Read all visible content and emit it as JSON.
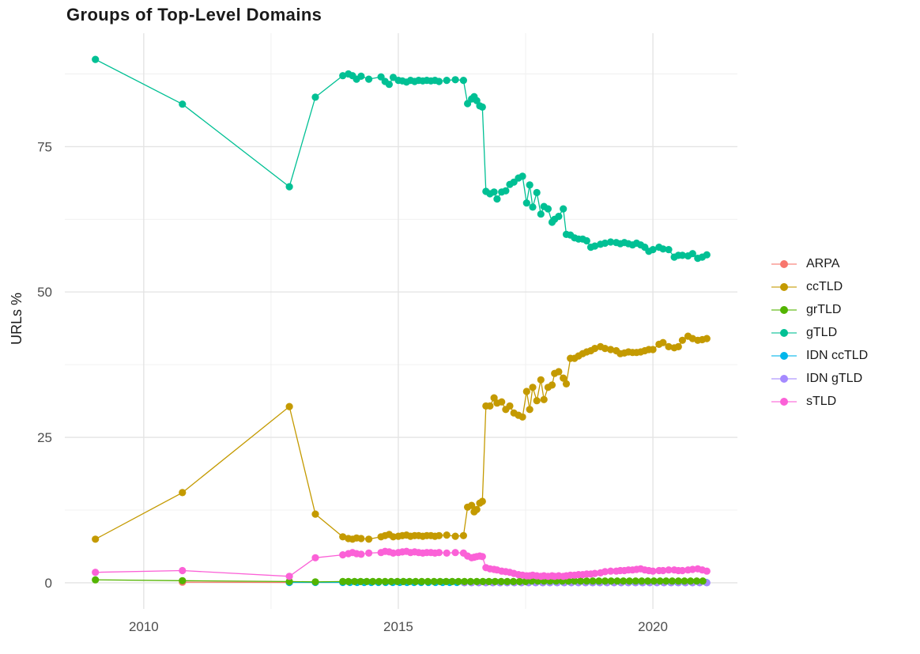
{
  "chart_data": {
    "type": "line",
    "title": "Groups of Top-Level Domains",
    "xlabel": "",
    "ylabel": "URLs %",
    "grid": "on",
    "legend_position": "right",
    "x_domain": [
      2008.45,
      2021.66
    ],
    "y_domain": [
      -4.5,
      94.5
    ],
    "x_ticks": [
      {
        "value": 2010,
        "label": "2010"
      },
      {
        "value": 2015,
        "label": "2015"
      },
      {
        "value": 2020,
        "label": "2020"
      }
    ],
    "x_minor_ticks": [
      2012.5,
      2017.5
    ],
    "y_ticks": [
      {
        "value": 0,
        "label": "0"
      },
      {
        "value": 25,
        "label": "25"
      },
      {
        "value": 50,
        "label": "50"
      },
      {
        "value": 75,
        "label": "75"
      }
    ],
    "y_minor_ticks": [
      12.5,
      37.5,
      62.5,
      87.5
    ],
    "z_order": [
      "ARPA",
      "IDN ccTLD",
      "IDN gTLD",
      "grTLD",
      "ccTLD",
      "gTLD",
      "sTLD"
    ],
    "series": [
      {
        "name": "ARPA",
        "color": "#F8766D",
        "points": [
          [
            2010.76,
            0.1
          ],
          [
            2012.86,
            0.05
          ]
        ]
      },
      {
        "name": "ccTLD",
        "color": "#C49A00",
        "points": [
          [
            2009.05,
            7.5
          ],
          [
            2010.76,
            15.5
          ],
          [
            2012.86,
            30.3
          ],
          [
            2013.37,
            11.8
          ],
          [
            2013.91,
            7.9
          ],
          [
            2014.02,
            7.6
          ],
          [
            2014.1,
            7.5
          ],
          [
            2014.18,
            7.7
          ],
          [
            2014.27,
            7.6
          ],
          [
            2014.42,
            7.5
          ],
          [
            2014.66,
            7.9
          ],
          [
            2014.74,
            8.1
          ],
          [
            2014.82,
            8.3
          ],
          [
            2014.9,
            7.9
          ],
          [
            2015.0,
            8.0
          ],
          [
            2015.08,
            8.1
          ],
          [
            2015.16,
            8.2
          ],
          [
            2015.24,
            8.0
          ],
          [
            2015.32,
            8.1
          ],
          [
            2015.4,
            8.1
          ],
          [
            2015.48,
            8.0
          ],
          [
            2015.56,
            8.1
          ],
          [
            2015.64,
            8.1
          ],
          [
            2015.72,
            8.0
          ],
          [
            2015.8,
            8.1
          ],
          [
            2015.95,
            8.2
          ],
          [
            2016.12,
            8.0
          ],
          [
            2016.28,
            8.1
          ],
          [
            2016.36,
            13.0
          ],
          [
            2016.44,
            13.3
          ],
          [
            2016.49,
            12.2
          ],
          [
            2016.54,
            12.6
          ],
          [
            2016.6,
            13.7
          ],
          [
            2016.65,
            14.0
          ],
          [
            2016.72,
            30.4
          ],
          [
            2016.8,
            30.4
          ],
          [
            2016.88,
            31.8
          ],
          [
            2016.94,
            30.9
          ],
          [
            2017.03,
            31.1
          ],
          [
            2017.11,
            29.8
          ],
          [
            2017.19,
            30.4
          ],
          [
            2017.27,
            29.2
          ],
          [
            2017.36,
            28.8
          ],
          [
            2017.44,
            28.5
          ],
          [
            2017.52,
            32.9
          ],
          [
            2017.58,
            29.8
          ],
          [
            2017.64,
            33.6
          ],
          [
            2017.72,
            31.3
          ],
          [
            2017.8,
            34.9
          ],
          [
            2017.86,
            31.5
          ],
          [
            2017.94,
            33.6
          ],
          [
            2018.02,
            34.0
          ],
          [
            2018.07,
            36.0
          ],
          [
            2018.15,
            36.3
          ],
          [
            2018.24,
            35.2
          ],
          [
            2018.3,
            34.2
          ],
          [
            2018.38,
            38.6
          ],
          [
            2018.46,
            38.6
          ],
          [
            2018.54,
            39.0
          ],
          [
            2018.62,
            39.4
          ],
          [
            2018.7,
            39.7
          ],
          [
            2018.78,
            39.9
          ],
          [
            2018.86,
            40.3
          ],
          [
            2018.97,
            40.6
          ],
          [
            2019.06,
            40.3
          ],
          [
            2019.17,
            40.1
          ],
          [
            2019.28,
            39.9
          ],
          [
            2019.36,
            39.4
          ],
          [
            2019.44,
            39.5
          ],
          [
            2019.52,
            39.7
          ],
          [
            2019.6,
            39.6
          ],
          [
            2019.68,
            39.6
          ],
          [
            2019.76,
            39.7
          ],
          [
            2019.84,
            39.9
          ],
          [
            2019.92,
            40.1
          ],
          [
            2020.0,
            40.1
          ],
          [
            2020.12,
            41.0
          ],
          [
            2020.2,
            41.3
          ],
          [
            2020.31,
            40.6
          ],
          [
            2020.42,
            40.4
          ],
          [
            2020.5,
            40.6
          ],
          [
            2020.58,
            41.7
          ],
          [
            2020.69,
            42.4
          ],
          [
            2020.78,
            42.0
          ],
          [
            2020.88,
            41.7
          ],
          [
            2020.97,
            41.8
          ],
          [
            2021.06,
            42.0
          ]
        ]
      },
      {
        "name": "grTLD",
        "color": "#53B400",
        "points": [
          [
            2009.05,
            0.5
          ],
          [
            2010.76,
            0.35
          ],
          [
            2012.86,
            0.2
          ],
          [
            2013.37,
            0.15
          ],
          [
            2013.91,
            0.2
          ],
          {
            "run": [
              2014.02,
              2017.5,
              0.12,
              0.2
            ]
          },
          {
            "run": [
              2017.62,
              2021.06,
              0.12,
              0.3
            ]
          }
        ]
      },
      {
        "name": "gTLD",
        "color": "#00C094",
        "points": [
          [
            2009.05,
            90.0
          ],
          [
            2010.76,
            82.3
          ],
          [
            2012.86,
            68.1
          ],
          [
            2013.37,
            83.5
          ],
          [
            2013.91,
            87.2
          ],
          [
            2014.02,
            87.5
          ],
          [
            2014.1,
            87.2
          ],
          [
            2014.18,
            86.6
          ],
          [
            2014.27,
            87.1
          ],
          [
            2014.42,
            86.6
          ],
          [
            2014.66,
            87.0
          ],
          [
            2014.74,
            86.2
          ],
          [
            2014.82,
            85.7
          ],
          [
            2014.9,
            86.9
          ],
          [
            2015.0,
            86.4
          ],
          [
            2015.08,
            86.3
          ],
          [
            2015.16,
            86.1
          ],
          [
            2015.24,
            86.4
          ],
          [
            2015.32,
            86.2
          ],
          [
            2015.4,
            86.4
          ],
          [
            2015.48,
            86.3
          ],
          [
            2015.56,
            86.4
          ],
          [
            2015.64,
            86.3
          ],
          [
            2015.72,
            86.4
          ],
          [
            2015.8,
            86.2
          ],
          [
            2015.95,
            86.4
          ],
          [
            2016.12,
            86.5
          ],
          [
            2016.28,
            86.4
          ],
          [
            2016.36,
            82.4
          ],
          [
            2016.44,
            83.2
          ],
          [
            2016.49,
            83.6
          ],
          [
            2016.54,
            82.9
          ],
          [
            2016.6,
            82.0
          ],
          [
            2016.65,
            81.8
          ],
          [
            2016.72,
            67.3
          ],
          [
            2016.8,
            66.9
          ],
          [
            2016.88,
            67.2
          ],
          [
            2016.94,
            66.0
          ],
          [
            2017.03,
            67.2
          ],
          [
            2017.11,
            67.4
          ],
          [
            2017.19,
            68.5
          ],
          [
            2017.27,
            68.9
          ],
          [
            2017.36,
            69.6
          ],
          [
            2017.44,
            69.9
          ],
          [
            2017.52,
            65.3
          ],
          [
            2017.58,
            68.4
          ],
          [
            2017.64,
            64.6
          ],
          [
            2017.72,
            67.1
          ],
          [
            2017.8,
            63.4
          ],
          [
            2017.86,
            64.7
          ],
          [
            2017.94,
            64.3
          ],
          [
            2018.02,
            62.0
          ],
          [
            2018.07,
            62.5
          ],
          [
            2018.15,
            63.0
          ],
          [
            2018.24,
            64.3
          ],
          [
            2018.3,
            59.9
          ],
          [
            2018.38,
            59.8
          ],
          [
            2018.46,
            59.3
          ],
          [
            2018.54,
            59.1
          ],
          [
            2018.62,
            59.1
          ],
          [
            2018.7,
            58.8
          ],
          [
            2018.78,
            57.7
          ],
          [
            2018.86,
            57.9
          ],
          [
            2018.97,
            58.2
          ],
          [
            2019.06,
            58.4
          ],
          [
            2019.17,
            58.6
          ],
          [
            2019.28,
            58.5
          ],
          [
            2019.36,
            58.3
          ],
          [
            2019.44,
            58.5
          ],
          [
            2019.52,
            58.3
          ],
          [
            2019.6,
            58.1
          ],
          [
            2019.68,
            58.4
          ],
          [
            2019.76,
            58.1
          ],
          [
            2019.84,
            57.7
          ],
          [
            2019.92,
            57.0
          ],
          [
            2020.0,
            57.3
          ],
          [
            2020.12,
            57.7
          ],
          [
            2020.2,
            57.4
          ],
          [
            2020.31,
            57.3
          ],
          [
            2020.42,
            56.0
          ],
          [
            2020.5,
            56.3
          ],
          [
            2020.58,
            56.3
          ],
          [
            2020.69,
            56.2
          ],
          [
            2020.78,
            56.6
          ],
          [
            2020.88,
            55.8
          ],
          [
            2020.97,
            56.0
          ],
          [
            2021.06,
            56.4
          ]
        ]
      },
      {
        "name": "IDN ccTLD",
        "color": "#00B6EB",
        "points": [
          [
            2012.86,
            0.05
          ],
          [
            2013.37,
            0.05
          ],
          {
            "run": [
              2013.91,
              2021.06,
              0.14,
              0.05
            ]
          }
        ]
      },
      {
        "name": "IDN gTLD",
        "color": "#A58AFF",
        "points": [
          {
            "run": [
              2016.3,
              2021.06,
              0.14,
              0.0
            ]
          }
        ]
      },
      {
        "name": "sTLD",
        "color": "#FB61D7",
        "points": [
          [
            2009.05,
            1.8
          ],
          [
            2010.76,
            2.1
          ],
          [
            2012.86,
            1.1
          ],
          [
            2013.37,
            4.3
          ],
          [
            2013.91,
            4.8
          ],
          [
            2014.02,
            5.0
          ],
          [
            2014.1,
            5.2
          ],
          [
            2014.18,
            5.0
          ],
          [
            2014.27,
            4.9
          ],
          [
            2014.42,
            5.1
          ],
          [
            2014.66,
            5.2
          ],
          [
            2014.74,
            5.4
          ],
          [
            2014.82,
            5.3
          ],
          [
            2014.9,
            5.1
          ],
          [
            2015.0,
            5.2
          ],
          [
            2015.08,
            5.3
          ],
          [
            2015.16,
            5.4
          ],
          [
            2015.24,
            5.2
          ],
          [
            2015.32,
            5.3
          ],
          [
            2015.4,
            5.2
          ],
          [
            2015.48,
            5.1
          ],
          [
            2015.56,
            5.2
          ],
          [
            2015.64,
            5.2
          ],
          [
            2015.72,
            5.1
          ],
          [
            2015.8,
            5.2
          ],
          [
            2015.95,
            5.1
          ],
          [
            2016.12,
            5.2
          ],
          [
            2016.28,
            5.1
          ],
          [
            2016.36,
            4.6
          ],
          [
            2016.44,
            4.3
          ],
          [
            2016.49,
            4.4
          ],
          [
            2016.54,
            4.5
          ],
          [
            2016.6,
            4.6
          ],
          [
            2016.65,
            4.5
          ],
          [
            2016.72,
            2.6
          ],
          [
            2016.8,
            2.4
          ],
          [
            2016.88,
            2.3
          ],
          [
            2016.94,
            2.2
          ],
          [
            2017.03,
            2.0
          ],
          [
            2017.11,
            1.9
          ],
          [
            2017.19,
            1.8
          ],
          [
            2017.27,
            1.6
          ],
          [
            2017.36,
            1.4
          ],
          [
            2017.44,
            1.3
          ],
          [
            2017.52,
            1.2
          ],
          [
            2017.58,
            1.2
          ],
          [
            2017.64,
            1.3
          ],
          [
            2017.72,
            1.2
          ],
          [
            2017.8,
            1.1
          ],
          [
            2017.86,
            1.2
          ],
          [
            2017.94,
            1.1
          ],
          [
            2018.02,
            1.2
          ],
          [
            2018.07,
            1.1
          ],
          [
            2018.15,
            1.2
          ],
          [
            2018.24,
            1.1
          ],
          [
            2018.3,
            1.2
          ],
          [
            2018.38,
            1.3
          ],
          [
            2018.46,
            1.3
          ],
          [
            2018.54,
            1.4
          ],
          [
            2018.62,
            1.4
          ],
          [
            2018.7,
            1.5
          ],
          [
            2018.78,
            1.5
          ],
          [
            2018.86,
            1.6
          ],
          [
            2018.97,
            1.7
          ],
          [
            2019.06,
            1.9
          ],
          [
            2019.17,
            2.0
          ],
          [
            2019.28,
            2.0
          ],
          [
            2019.36,
            2.1
          ],
          [
            2019.44,
            2.1
          ],
          [
            2019.52,
            2.2
          ],
          [
            2019.6,
            2.2
          ],
          [
            2019.68,
            2.3
          ],
          [
            2019.76,
            2.4
          ],
          [
            2019.84,
            2.2
          ],
          [
            2019.92,
            2.1
          ],
          [
            2020.0,
            2.0
          ],
          [
            2020.12,
            2.1
          ],
          [
            2020.2,
            2.1
          ],
          [
            2020.31,
            2.2
          ],
          [
            2020.42,
            2.2
          ],
          [
            2020.5,
            2.1
          ],
          [
            2020.58,
            2.1
          ],
          [
            2020.69,
            2.2
          ],
          [
            2020.78,
            2.3
          ],
          [
            2020.88,
            2.4
          ],
          [
            2020.97,
            2.2
          ],
          [
            2021.06,
            2.0
          ]
        ]
      }
    ],
    "style": {
      "grid_major_color": "#E4E4E4",
      "grid_minor_color": "#F0F0F0",
      "tick_label_color": "#4D4D4D",
      "title_color": "#1a1a1a",
      "background": "#ffffff"
    }
  }
}
